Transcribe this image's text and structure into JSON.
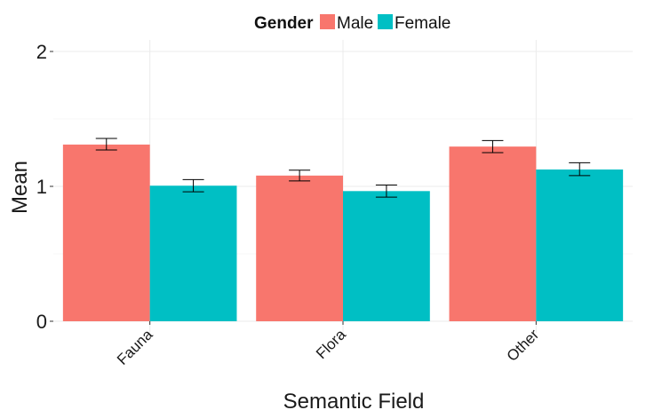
{
  "chart_data": {
    "type": "bar",
    "title": "",
    "xlabel": "Semantic Field",
    "ylabel": "Mean",
    "categories": [
      "Fauna",
      "Flora",
      "Other"
    ],
    "series": [
      {
        "name": "Male",
        "color": "#F8766D",
        "values": [
          1.31,
          1.08,
          1.295
        ],
        "err_low": [
          1.27,
          1.04,
          1.25
        ],
        "err_high": [
          1.355,
          1.12,
          1.34
        ]
      },
      {
        "name": "Female",
        "color": "#00BFC4",
        "values": [
          1.005,
          0.965,
          1.125
        ],
        "err_low": [
          0.96,
          0.92,
          1.08
        ],
        "err_high": [
          1.05,
          1.01,
          1.175
        ]
      }
    ],
    "ylim": [
      0,
      2
    ],
    "yticks": [
      "0",
      "1",
      "2"
    ],
    "grid": true,
    "legend": {
      "title": "Gender",
      "placement": "top"
    }
  }
}
